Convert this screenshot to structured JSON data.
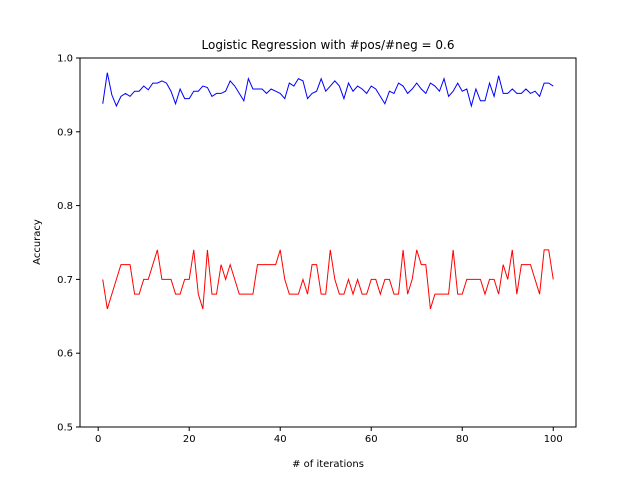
{
  "chart_data": {
    "type": "line",
    "title": "Logistic Regression with #pos/#neg = 0.6",
    "xlabel": "# of iterations",
    "ylabel": "Accuracy",
    "xlim": [
      -4,
      105
    ],
    "ylim": [
      0.5,
      1.0
    ],
    "xticks": [
      0,
      20,
      40,
      60,
      80,
      100
    ],
    "yticks": [
      0.5,
      0.6,
      0.7,
      0.8,
      0.9,
      1.0
    ],
    "ytick_labels": [
      "0.5",
      "0.6",
      "0.7",
      "0.8",
      "0.9",
      "1.0"
    ],
    "grid": false,
    "legend": "none",
    "x": [
      1,
      2,
      3,
      4,
      5,
      6,
      7,
      8,
      9,
      10,
      11,
      12,
      13,
      14,
      15,
      16,
      17,
      18,
      19,
      20,
      21,
      22,
      23,
      24,
      25,
      26,
      27,
      28,
      29,
      30,
      31,
      32,
      33,
      34,
      35,
      36,
      37,
      38,
      39,
      40,
      41,
      42,
      43,
      44,
      45,
      46,
      47,
      48,
      49,
      50,
      51,
      52,
      53,
      54,
      55,
      56,
      57,
      58,
      59,
      60,
      61,
      62,
      63,
      64,
      65,
      66,
      67,
      68,
      69,
      70,
      71,
      72,
      73,
      74,
      75,
      76,
      77,
      78,
      79,
      80,
      81,
      82,
      83,
      84,
      85,
      86,
      87,
      88,
      89,
      90,
      91,
      92,
      93,
      94,
      95,
      96,
      97,
      98,
      99,
      100
    ],
    "series": [
      {
        "color": "#0000ff",
        "values": [
          0.938,
          0.98,
          0.95,
          0.935,
          0.948,
          0.952,
          0.948,
          0.955,
          0.955,
          0.962,
          0.957,
          0.966,
          0.966,
          0.969,
          0.966,
          0.955,
          0.938,
          0.958,
          0.945,
          0.945,
          0.955,
          0.955,
          0.962,
          0.96,
          0.948,
          0.952,
          0.952,
          0.955,
          0.969,
          0.962,
          0.952,
          0.942,
          0.972,
          0.958,
          0.958,
          0.958,
          0.952,
          0.958,
          0.955,
          0.952,
          0.945,
          0.966,
          0.962,
          0.972,
          0.969,
          0.945,
          0.952,
          0.955,
          0.972,
          0.955,
          0.962,
          0.969,
          0.962,
          0.945,
          0.966,
          0.955,
          0.962,
          0.958,
          0.952,
          0.962,
          0.958,
          0.948,
          0.938,
          0.955,
          0.952,
          0.966,
          0.962,
          0.952,
          0.958,
          0.966,
          0.958,
          0.952,
          0.966,
          0.962,
          0.955,
          0.972,
          0.948,
          0.955,
          0.966,
          0.955,
          0.958,
          0.935,
          0.958,
          0.942,
          0.942,
          0.966,
          0.948,
          0.976,
          0.952,
          0.952,
          0.958,
          0.952,
          0.952,
          0.958,
          0.952,
          0.955,
          0.948,
          0.966,
          0.966,
          0.962
        ]
      },
      {
        "color": "#ff0000",
        "values": [
          0.7,
          0.66,
          0.68,
          0.7,
          0.72,
          0.72,
          0.72,
          0.68,
          0.68,
          0.7,
          0.7,
          0.72,
          0.74,
          0.7,
          0.7,
          0.7,
          0.68,
          0.68,
          0.7,
          0.7,
          0.74,
          0.68,
          0.66,
          0.74,
          0.68,
          0.68,
          0.72,
          0.7,
          0.72,
          0.7,
          0.68,
          0.68,
          0.68,
          0.68,
          0.72,
          0.72,
          0.72,
          0.72,
          0.72,
          0.74,
          0.7,
          0.68,
          0.68,
          0.68,
          0.7,
          0.68,
          0.72,
          0.72,
          0.68,
          0.68,
          0.74,
          0.7,
          0.68,
          0.68,
          0.7,
          0.68,
          0.7,
          0.68,
          0.68,
          0.7,
          0.7,
          0.68,
          0.7,
          0.7,
          0.68,
          0.68,
          0.74,
          0.68,
          0.7,
          0.74,
          0.72,
          0.72,
          0.66,
          0.68,
          0.68,
          0.68,
          0.68,
          0.74,
          0.68,
          0.68,
          0.7,
          0.7,
          0.7,
          0.7,
          0.68,
          0.7,
          0.7,
          0.68,
          0.72,
          0.7,
          0.74,
          0.68,
          0.72,
          0.72,
          0.72,
          0.7,
          0.68,
          0.74,
          0.74,
          0.7
        ]
      }
    ]
  }
}
